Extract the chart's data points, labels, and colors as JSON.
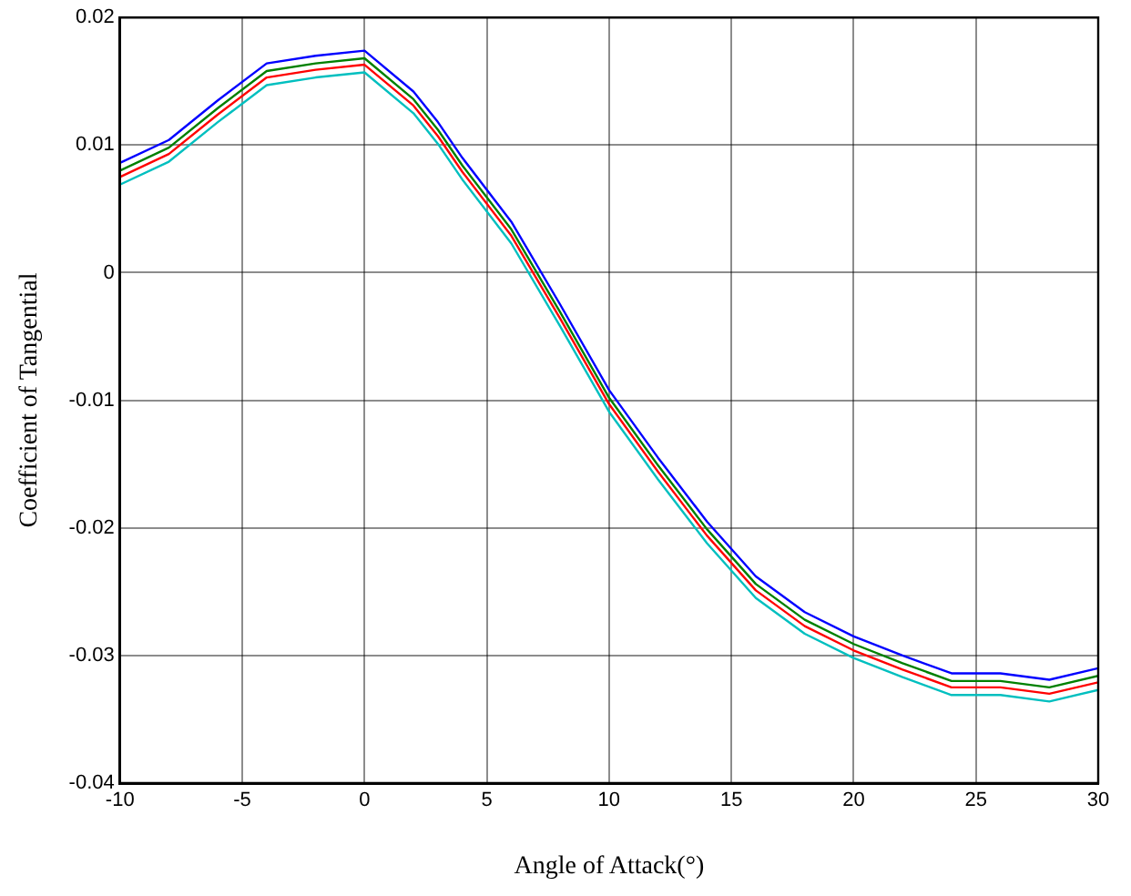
{
  "chart_data": {
    "type": "line",
    "xlabel": "Angle of Attack(°)",
    "ylabel": "Coefficient of Tangential",
    "x": [
      -10,
      -8,
      -6,
      -4,
      -2,
      0,
      2,
      3,
      4,
      6,
      8,
      10,
      12,
      14,
      16,
      18,
      20,
      22,
      24,
      26,
      28,
      30
    ],
    "series": [
      {
        "color": "#0000ff",
        "values": [
          0.0086,
          0.0104,
          0.0135,
          0.0164,
          0.017,
          0.0174,
          0.0142,
          0.0118,
          0.009,
          0.004,
          -0.0025,
          -0.0092,
          -0.0145,
          -0.0195,
          -0.0238,
          -0.0266,
          -0.0285,
          -0.03,
          -0.0314,
          -0.0314,
          -0.0319,
          -0.031
        ]
      },
      {
        "color": "#008000",
        "values": [
          0.008,
          0.0098,
          0.0129,
          0.0158,
          0.0164,
          0.0168,
          0.0136,
          0.0112,
          0.0084,
          0.0034,
          -0.0031,
          -0.0098,
          -0.0151,
          -0.0201,
          -0.0244,
          -0.0272,
          -0.0291,
          -0.0306,
          -0.032,
          -0.032,
          -0.0325,
          -0.0316
        ]
      },
      {
        "color": "#ff0000",
        "values": [
          0.0075,
          0.0093,
          0.0124,
          0.0153,
          0.0159,
          0.0163,
          0.0131,
          0.0107,
          0.0079,
          0.0029,
          -0.0036,
          -0.0103,
          -0.0156,
          -0.0206,
          -0.0249,
          -0.0277,
          -0.0296,
          -0.0311,
          -0.0325,
          -0.0325,
          -0.033,
          -0.0321
        ]
      },
      {
        "color": "#00bfbf",
        "values": [
          0.0069,
          0.0087,
          0.0118,
          0.0147,
          0.0153,
          0.0157,
          0.0125,
          0.0101,
          0.0073,
          0.0023,
          -0.0042,
          -0.0109,
          -0.0162,
          -0.0212,
          -0.0255,
          -0.0283,
          -0.0302,
          -0.0317,
          -0.0331,
          -0.0331,
          -0.0336,
          -0.0327
        ]
      }
    ],
    "xlim": [
      -10,
      30
    ],
    "xticks": [
      -10,
      -5,
      0,
      5,
      10,
      15,
      20,
      25,
      30
    ],
    "ylim": [
      -0.04,
      0.02
    ],
    "yticks": [
      -0.04,
      -0.03,
      -0.02,
      -0.01,
      0,
      0.01,
      0.02
    ],
    "grid": true,
    "legend": false,
    "marker": "none",
    "line_style": "solid"
  }
}
